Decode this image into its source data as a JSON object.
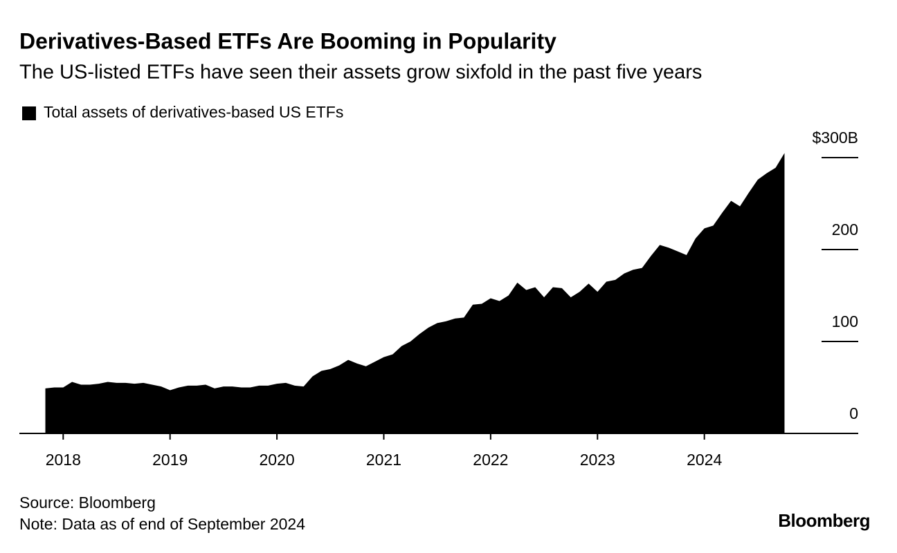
{
  "chart_data": {
    "type": "area",
    "title": "Derivatives-Based ETFs Are Booming in Popularity",
    "subtitle": "The US-listed ETFs have seen their assets grow sixfold in the past five years",
    "x": [
      2017.833,
      2017.917,
      2018.0,
      2018.083,
      2018.167,
      2018.25,
      2018.333,
      2018.417,
      2018.5,
      2018.583,
      2018.667,
      2018.75,
      2018.833,
      2018.917,
      2019.0,
      2019.083,
      2019.167,
      2019.25,
      2019.333,
      2019.417,
      2019.5,
      2019.583,
      2019.667,
      2019.75,
      2019.833,
      2019.917,
      2020.0,
      2020.083,
      2020.167,
      2020.25,
      2020.333,
      2020.417,
      2020.5,
      2020.583,
      2020.667,
      2020.75,
      2020.833,
      2020.917,
      2021.0,
      2021.083,
      2021.167,
      2021.25,
      2021.333,
      2021.417,
      2021.5,
      2021.583,
      2021.667,
      2021.75,
      2021.833,
      2021.917,
      2022.0,
      2022.083,
      2022.167,
      2022.25,
      2022.333,
      2022.417,
      2022.5,
      2022.583,
      2022.667,
      2022.75,
      2022.833,
      2022.917,
      2023.0,
      2023.083,
      2023.167,
      2023.25,
      2023.333,
      2023.417,
      2023.5,
      2023.583,
      2023.667,
      2023.75,
      2023.833,
      2023.917,
      2024.0,
      2024.083,
      2024.167,
      2024.25,
      2024.333,
      2024.417,
      2024.5,
      2024.583,
      2024.667,
      2024.75
    ],
    "series": [
      {
        "name": "Total assets of derivatives-based US ETFs",
        "color": "#000000",
        "values": [
          49,
          50,
          50,
          56,
          53,
          53,
          54,
          56,
          55,
          55,
          54,
          55,
          53,
          51,
          47,
          50,
          52,
          52,
          53,
          49,
          51,
          51,
          50,
          50,
          52,
          52,
          54,
          55,
          52,
          51,
          62,
          68,
          70,
          74,
          80,
          76,
          73,
          78,
          83,
          86,
          95,
          100,
          108,
          115,
          120,
          122,
          125,
          126,
          140,
          141,
          147,
          144,
          150,
          164,
          156,
          159,
          148,
          159,
          158,
          148,
          154,
          163,
          154,
          165,
          167,
          174,
          178,
          180,
          193,
          205,
          202,
          198,
          194,
          212,
          223,
          226,
          240,
          253,
          247,
          262,
          276,
          283,
          289,
          305
        ]
      }
    ],
    "xlim": [
      2017.59,
      2025.44
    ],
    "xticks": [
      2018,
      2019,
      2020,
      2021,
      2022,
      2023,
      2024
    ],
    "ylim": [
      0,
      300
    ],
    "yticks": [
      0,
      100,
      200,
      {
        "value": 300,
        "label": "$300B"
      }
    ],
    "source": "Source: Bloomberg",
    "note": "Note: Data as of end of September 2024",
    "logo": "Bloomberg"
  }
}
